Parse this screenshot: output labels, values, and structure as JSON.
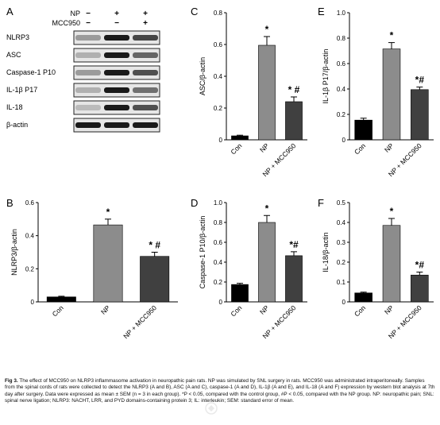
{
  "figure": {
    "caption_label": "Fig 3.",
    "caption_text": "The effect of MCC950 on NLRP3 inflammasome activation in neuropathic pain rats. NP was simulated by SNL surgery in rats. MCC950 was administrated intraperitoneally. Samples from the spinal cords of rats were collected to detect the NLRP3 (A and B), ASC (A and C), caspase-1 (A and D), IL-1β (A and E), and IL-18 (A and F) expression by western blot analysis at 7th day after surgery. Data were expressed as mean ± SEM (n = 3 in each group). *P < 0.05, compared with the control group, #P < 0.05, compared with the NP group. NP: neuropathic pain; SNL: spinal nerve ligation; NLRP3: NACHT, LRR, and PYD domains-containing protein 3; IL: interleukin; SEM: standard error of mean."
  },
  "western_blot": {
    "panel_letter": "A",
    "conditions": [
      {
        "label": "NP",
        "marks": [
          "−",
          "+",
          "+"
        ]
      },
      {
        "label": "MCC950",
        "marks": [
          "−",
          "−",
          "+"
        ]
      }
    ],
    "bands": [
      "NLRP3",
      "ASC",
      "Caspase-1 P10",
      "IL-1β P17",
      "IL-18",
      "β-actin"
    ]
  },
  "chart_data": [
    {
      "panel": "B",
      "type": "bar",
      "ylabel": "NLRP3/β-actin",
      "categories": [
        "Con",
        "NP",
        "NP + MCC950"
      ],
      "values": [
        0.03,
        0.465,
        0.275
      ],
      "errors": [
        0.004,
        0.035,
        0.025
      ],
      "ylim": [
        0,
        0.6
      ],
      "yticks": [
        "0",
        "0.2",
        "0.4",
        "0.6"
      ],
      "annotations": [
        "",
        "*",
        "* #"
      ]
    },
    {
      "panel": "C",
      "type": "bar",
      "ylabel": "ASC/β-actin",
      "categories": [
        "Con",
        "NP",
        "NP + MCC950"
      ],
      "values": [
        0.025,
        0.595,
        0.24
      ],
      "errors": [
        0.004,
        0.055,
        0.03
      ],
      "ylim": [
        0,
        0.8
      ],
      "yticks": [
        "0",
        "0.2",
        "0.4",
        "0.6",
        "0.8"
      ],
      "annotations": [
        "",
        "*",
        "* #"
      ]
    },
    {
      "panel": "D",
      "type": "bar",
      "ylabel": "Caspase-1 P10/β-actin",
      "categories": [
        "Con",
        "NP",
        "NP + MCC950"
      ],
      "values": [
        0.175,
        0.8,
        0.465
      ],
      "errors": [
        0.012,
        0.07,
        0.04
      ],
      "ylim": [
        0,
        1.0
      ],
      "yticks": [
        "0",
        "0.2",
        "0.4",
        "0.6",
        "0.8",
        "1.0"
      ],
      "annotations": [
        "",
        "*",
        "*#"
      ]
    },
    {
      "panel": "E",
      "type": "bar",
      "ylabel": "IL-1β P17/β-actin",
      "categories": [
        "Con",
        "NP",
        "NP + MCC950"
      ],
      "values": [
        0.155,
        0.715,
        0.395
      ],
      "errors": [
        0.015,
        0.05,
        0.02
      ],
      "ylim": [
        0,
        1.0
      ],
      "yticks": [
        "0",
        "0.2",
        "0.4",
        "0.6",
        "0.8",
        "1.0"
      ],
      "annotations": [
        "",
        "*",
        "*#"
      ]
    },
    {
      "panel": "F",
      "type": "bar",
      "ylabel": "IL-18/β-actin",
      "categories": [
        "Con",
        "NP",
        "NP + MCC950"
      ],
      "values": [
        0.045,
        0.385,
        0.135
      ],
      "errors": [
        0.004,
        0.035,
        0.015
      ],
      "ylim": [
        0,
        0.5
      ],
      "yticks": [
        "0",
        "0.1",
        "0.2",
        "0.3",
        "0.4",
        "0.5"
      ],
      "annotations": [
        "",
        "*",
        "*#"
      ]
    }
  ],
  "style": {
    "bar_colors": [
      "#000000",
      "#8c8c8c",
      "#404040"
    ]
  }
}
